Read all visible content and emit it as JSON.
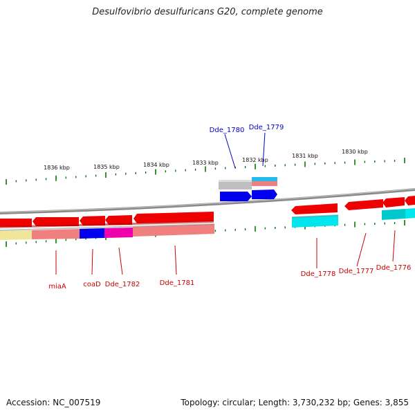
{
  "title": "Desulfovibrio desulfuricans G20, complete genome",
  "footer": {
    "accession": "Accession: NC_007519",
    "summary": "Topology: circular; Length: 3,730,232 bp; Genes: 3,855"
  },
  "scale_labels": [
    "1836 kbp",
    "1835 kbp",
    "1834 kbp",
    "1833 kbp",
    "1832 kbp",
    "1831 kbp",
    "1830 kbp"
  ],
  "gene_labels_top": [
    "Dde_1780",
    "Dde_1779"
  ],
  "gene_labels_bottom": [
    "miaA",
    "coaD",
    "Dde_1782",
    "Dde_1781",
    "Dde_1778",
    "Dde_1777",
    "Dde_1776"
  ],
  "colors": {
    "gene_red": "#ee0000",
    "label_red": "#cc0000",
    "label_blue": "#0000cc",
    "tick_green": "#007a00",
    "backbone": "#8a8a8a",
    "blue": "#0000ee",
    "cyan": "#00e5ee",
    "magenta": "#ee00aa",
    "salmon": "#f08080",
    "khaki": "#efe69a",
    "gray": "#bfbfbf",
    "sky": "#22bbee"
  }
}
